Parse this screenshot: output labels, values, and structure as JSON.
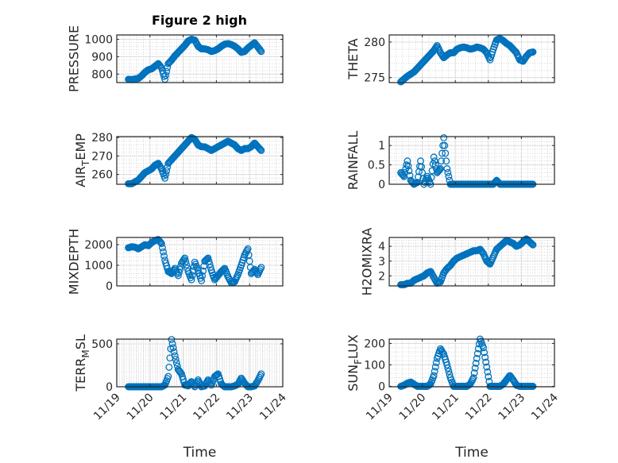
{
  "title": "Figure 2 high",
  "xlabel": "Time",
  "marker_color": "#0072BD",
  "xticks": [
    0,
    1,
    2,
    3,
    4,
    5
  ],
  "xtick_labels": [
    "11/19",
    "11/20",
    "11/21",
    "11/22",
    "11/23",
    "11/24"
  ],
  "x_days": [
    0.35,
    0.45,
    0.55,
    0.65,
    0.75,
    0.85,
    0.95,
    1.05,
    1.15,
    1.25,
    1.35,
    1.45,
    1.55,
    1.65,
    1.75,
    1.85,
    1.95,
    2.05,
    2.15,
    2.25,
    2.35,
    2.45,
    2.55,
    2.65,
    2.75,
    2.85,
    2.95,
    3.05,
    3.15,
    3.25,
    3.35,
    3.45,
    3.55,
    3.65,
    3.75,
    3.85,
    3.95,
    4.05,
    4.15,
    4.25,
    4.35
  ],
  "chart_data": [
    {
      "type": "scatter",
      "ylabel": "PRESSURE",
      "ylim": [
        751,
        1025
      ],
      "yticks": [
        800,
        900,
        1000
      ],
      "ystep": 100,
      "values": [
        770,
        768,
        772,
        775,
        790,
        810,
        825,
        830,
        845,
        860,
        835,
        770,
        860,
        880,
        905,
        925,
        945,
        965,
        990,
        1000,
        995,
        960,
        945,
        945,
        940,
        930,
        935,
        945,
        960,
        972,
        975,
        970,
        960,
        945,
        925,
        930,
        950,
        965,
        980,
        955,
        930
      ]
    },
    {
      "type": "scatter",
      "ylabel": "THETA",
      "ylim": [
        274.3,
        281
      ],
      "yticks": [
        275,
        280
      ],
      "ystep": 5,
      "values": [
        274.4,
        274.8,
        275.2,
        275.5,
        275.8,
        276.3,
        276.8,
        277.3,
        277.8,
        278.3,
        278.8,
        279.5,
        278.5,
        277.8,
        278.2,
        278.5,
        278.5,
        279,
        279.2,
        279.3,
        279.2,
        279,
        279.1,
        279.3,
        279.2,
        279,
        278.5,
        277.5,
        279,
        280.3,
        280.5,
        280.2,
        279.8,
        279.5,
        279,
        278.5,
        277.5,
        277.3,
        278,
        278.5,
        278.6
      ]
    },
    {
      "type": "scatter",
      "ylabel": "AIR_TEMP",
      "ylim": [
        254.7,
        280.5
      ],
      "yticks": [
        260,
        270,
        280
      ],
      "ystep": 10,
      "values": [
        255,
        255,
        256,
        257,
        259,
        261,
        262,
        263,
        265,
        266,
        263,
        258,
        266,
        268,
        270,
        272,
        274,
        276,
        278,
        280,
        279,
        276,
        275,
        275,
        274,
        273,
        274,
        275,
        276,
        277,
        278,
        277,
        276,
        274,
        273,
        274,
        274,
        275,
        277,
        275,
        273
      ]
    },
    {
      "type": "scatter",
      "ylabel": "RAINFALL",
      "ylim": [
        0,
        1.23
      ],
      "yticks": [
        0,
        0.5,
        1
      ],
      "ystep": 0.5,
      "values": [
        0.3,
        0.2,
        0.6,
        0.1,
        0,
        0.05,
        0.6,
        0,
        0.2,
        0,
        0.7,
        0.3,
        0.4,
        1.2,
        0.4,
        0,
        0,
        0,
        0,
        0,
        0,
        0,
        0,
        0,
        0,
        0,
        0,
        0,
        0,
        0.1,
        0,
        0,
        0,
        0,
        0,
        0,
        0,
        0,
        0,
        0,
        0
      ]
    },
    {
      "type": "scatter",
      "ylabel": "MIXDEPTH",
      "ylim": [
        0,
        2350
      ],
      "yticks": [
        0,
        1000,
        2000
      ],
      "ystep": 1000,
      "values": [
        1850,
        1900,
        1880,
        1800,
        1900,
        2000,
        1950,
        2100,
        2200,
        2250,
        2050,
        1250,
        700,
        600,
        850,
        500,
        1100,
        1350,
        700,
        300,
        1150,
        750,
        250,
        1200,
        1350,
        750,
        300,
        500,
        700,
        850,
        450,
        150,
        200,
        550,
        1000,
        1500,
        1800,
        600,
        800,
        550,
        900
      ]
    },
    {
      "type": "scatter",
      "ylabel": "H2OMIXRA",
      "ylim": [
        1.32,
        4.6
      ],
      "yticks": [
        2,
        3,
        4
      ],
      "ystep": 1,
      "values": [
        1.4,
        1.4,
        1.5,
        1.5,
        1.7,
        1.8,
        1.9,
        2.0,
        2.2,
        2.3,
        1.9,
        1.5,
        1.6,
        2.2,
        2.5,
        2.7,
        3.0,
        3.2,
        3.3,
        3.4,
        3.5,
        3.6,
        3.7,
        3.7,
        3.8,
        3.5,
        3.0,
        2.8,
        3.3,
        3.8,
        4.0,
        4.2,
        4.4,
        4.3,
        4.2,
        4.0,
        4.1,
        4.3,
        4.5,
        4.3,
        4.1
      ]
    },
    {
      "type": "scatter",
      "ylabel": "TERR_MSL",
      "ylim": [
        0,
        555
      ],
      "yticks": [
        0,
        500
      ],
      "ystep": 100,
      "values": [
        0,
        0,
        0,
        0,
        0,
        0,
        0,
        0,
        0,
        0,
        0,
        20,
        120,
        550,
        360,
        200,
        150,
        20,
        10,
        60,
        0,
        80,
        0,
        10,
        80,
        20,
        120,
        150,
        30,
        0,
        0,
        0,
        10,
        30,
        100,
        40,
        0,
        0,
        10,
        70,
        150
      ]
    },
    {
      "type": "scatter",
      "ylabel": "SUN_FLUX",
      "ylim": [
        -2,
        220
      ],
      "yticks": [
        0,
        100,
        200
      ],
      "ystep": 100,
      "values": [
        0,
        5,
        15,
        20,
        10,
        0,
        0,
        0,
        0,
        10,
        50,
        130,
        175,
        150,
        100,
        40,
        0,
        0,
        0,
        0,
        0,
        10,
        40,
        130,
        220,
        180,
        90,
        0,
        0,
        0,
        0,
        10,
        30,
        50,
        30,
        5,
        0,
        0,
        0,
        0,
        0
      ]
    }
  ]
}
